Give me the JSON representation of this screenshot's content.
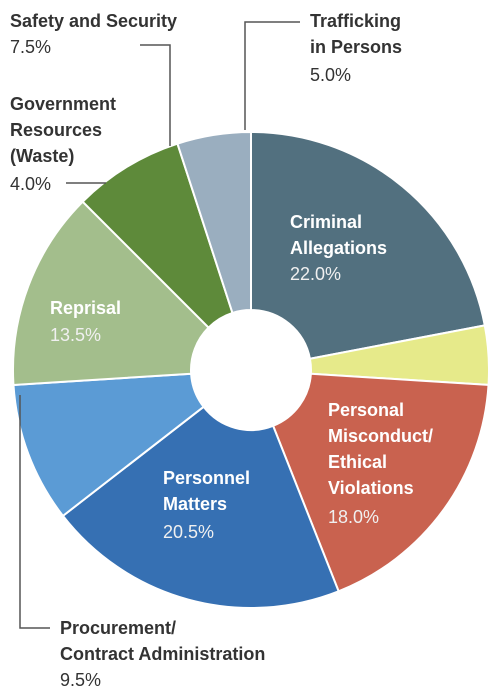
{
  "chart_data": {
    "type": "pie",
    "categories": [
      "Criminal Allegations",
      "Government Resources (Waste)",
      "Personal Misconduct/ Ethical Violations",
      "Personnel Matters",
      "Procurement/ Contract Administration",
      "Reprisal",
      "Safety and Security",
      "Trafficking in Persons"
    ],
    "values": [
      22.0,
      4.0,
      18.0,
      20.5,
      9.5,
      13.5,
      7.5,
      5.0
    ],
    "value_labels": [
      "22.0%",
      "4.0%",
      "18.0%",
      "20.5%",
      "9.5%",
      "13.5%",
      "7.5%",
      "5.0%"
    ],
    "colors": [
      "#52707f",
      "#e6ea8a",
      "#c9624f",
      "#3670b3",
      "#5b9bd5",
      "#a3be8c",
      "#5e8a3a",
      "#9aaebf"
    ]
  }
}
